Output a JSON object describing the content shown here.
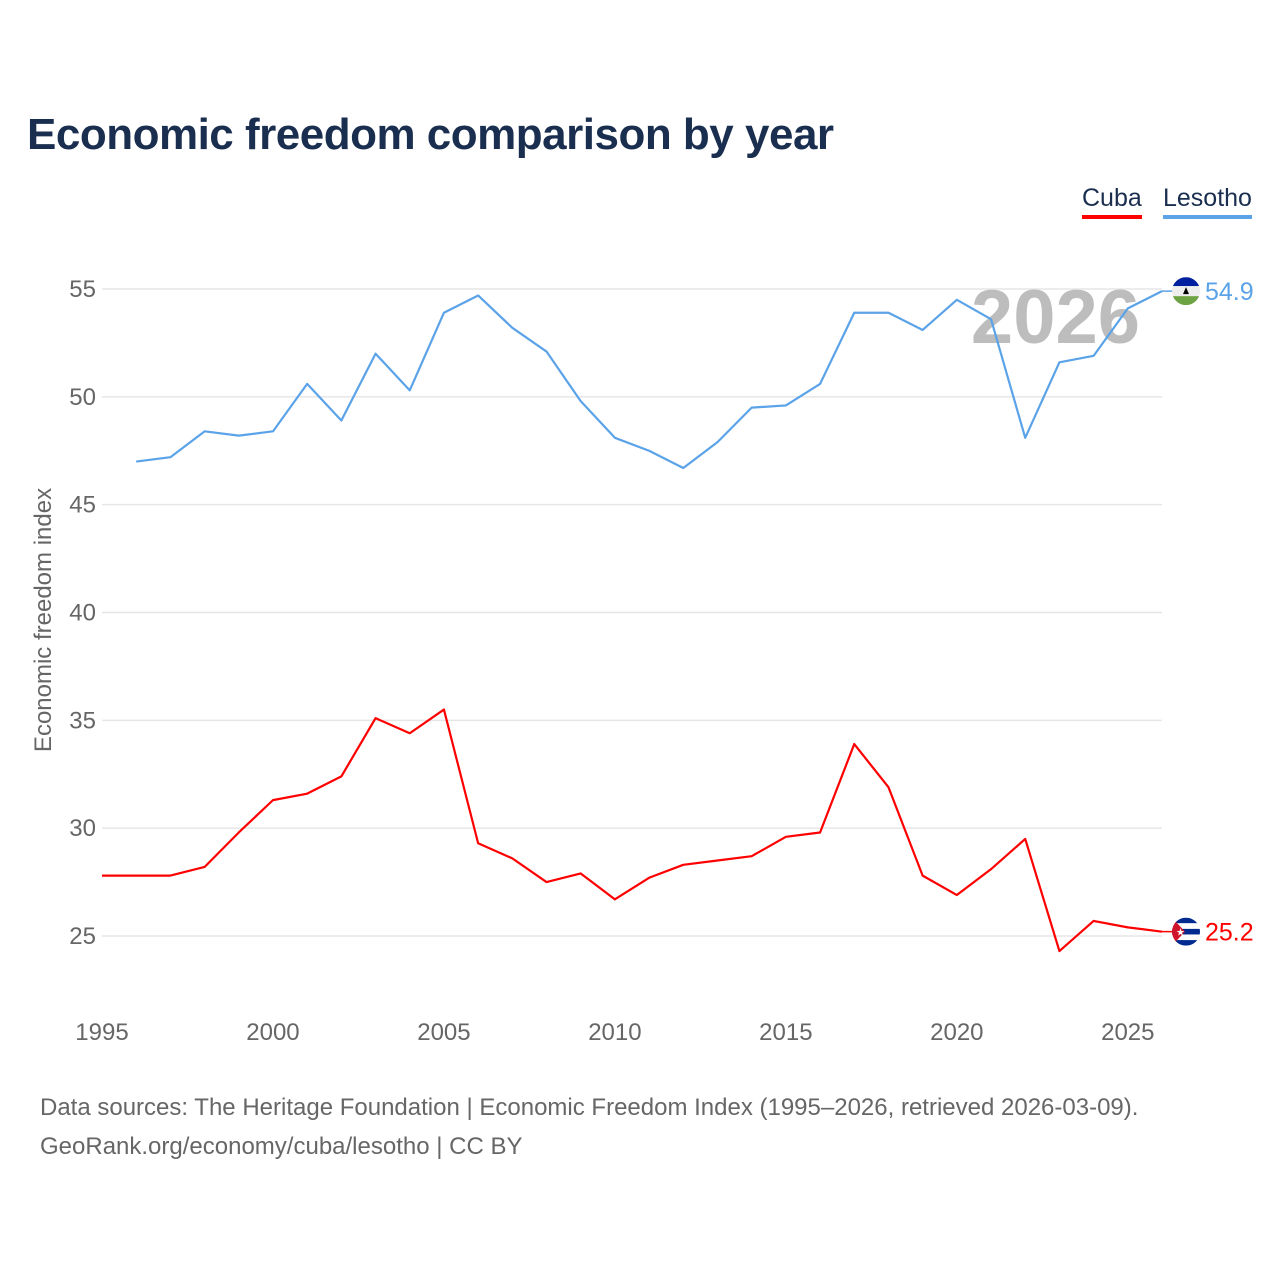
{
  "chart_data": {
    "type": "line",
    "title": "Economic freedom comparison by year",
    "xlabel": "",
    "ylabel": "Economic freedom index",
    "xlim": [
      1995,
      2026
    ],
    "ylim": [
      22,
      57
    ],
    "x_ticks": [
      1995,
      2000,
      2005,
      2010,
      2015,
      2020,
      2025
    ],
    "y_ticks": [
      25,
      30,
      35,
      40,
      45,
      50,
      55
    ],
    "grid": true,
    "legend_position": "top-right",
    "year_watermark": "2026",
    "series": [
      {
        "name": "Cuba",
        "color": "#ff0000",
        "end_label": "25.2",
        "x": [
          1995,
          1996,
          1997,
          1998,
          1999,
          2000,
          2001,
          2002,
          2003,
          2004,
          2005,
          2006,
          2007,
          2008,
          2009,
          2010,
          2011,
          2012,
          2013,
          2014,
          2015,
          2016,
          2017,
          2018,
          2019,
          2020,
          2021,
          2022,
          2023,
          2024,
          2025,
          2026
        ],
        "values": [
          27.8,
          27.8,
          27.8,
          28.2,
          29.8,
          31.3,
          31.6,
          32.4,
          35.1,
          34.4,
          35.5,
          29.3,
          28.6,
          27.5,
          27.9,
          26.7,
          27.7,
          28.3,
          28.5,
          28.7,
          29.6,
          29.8,
          33.9,
          31.9,
          27.8,
          26.9,
          28.1,
          29.5,
          24.3,
          25.7,
          25.4,
          25.2
        ]
      },
      {
        "name": "Lesotho",
        "color": "#5ba3e8",
        "end_label": "54.9",
        "x": [
          1996,
          1997,
          1998,
          1999,
          2000,
          2001,
          2002,
          2003,
          2004,
          2005,
          2006,
          2007,
          2008,
          2009,
          2010,
          2011,
          2012,
          2013,
          2014,
          2015,
          2016,
          2017,
          2018,
          2019,
          2020,
          2021,
          2022,
          2023,
          2024,
          2025,
          2026
        ],
        "values": [
          47.0,
          47.2,
          48.4,
          48.2,
          48.4,
          50.6,
          48.9,
          52.0,
          50.3,
          53.9,
          54.7,
          53.2,
          52.1,
          49.8,
          48.1,
          47.5,
          46.7,
          47.9,
          49.5,
          49.6,
          50.6,
          53.9,
          53.9,
          53.1,
          54.5,
          53.6,
          48.1,
          51.6,
          51.9,
          54.1,
          54.9
        ]
      }
    ]
  },
  "footer": {
    "line1": "Data sources: The Heritage Foundation | Economic Freedom Index (1995–2026, retrieved 2026-03-09).",
    "line2": "GeoRank.org/economy/cuba/lesotho | CC BY"
  }
}
